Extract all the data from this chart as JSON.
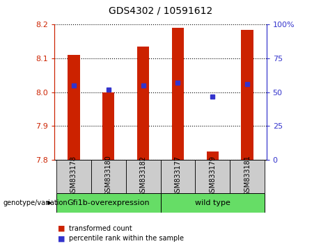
{
  "title": "GDS4302 / 10591612",
  "samples": [
    "GSM833178",
    "GSM833180",
    "GSM833182",
    "GSM833177",
    "GSM833179",
    "GSM833181"
  ],
  "bar_tops": [
    8.11,
    8.0,
    8.135,
    8.19,
    7.825,
    8.185
  ],
  "bar_bottom": 7.8,
  "percentile_values": [
    55,
    52,
    55,
    57,
    47,
    56
  ],
  "ylim": [
    7.8,
    8.2
  ],
  "yticks_left": [
    7.8,
    7.9,
    8.0,
    8.1,
    8.2
  ],
  "yticks_right": [
    0,
    25,
    50,
    75,
    100
  ],
  "bar_color": "#cc2200",
  "blue_color": "#3333cc",
  "label_bg_color": "#cccccc",
  "group1_label": "Gfi1b-overexpression",
  "group2_label": "wild type",
  "group_color": "#66dd66",
  "group1_indices": [
    0,
    1,
    2
  ],
  "group2_indices": [
    3,
    4,
    5
  ],
  "genotype_label": "genotype/variation",
  "legend_red": "transformed count",
  "legend_blue": "percentile rank within the sample",
  "bar_width": 0.35,
  "title_fontsize": 10,
  "tick_fontsize": 8,
  "label_fontsize": 7,
  "group_fontsize": 8,
  "legend_fontsize": 7
}
